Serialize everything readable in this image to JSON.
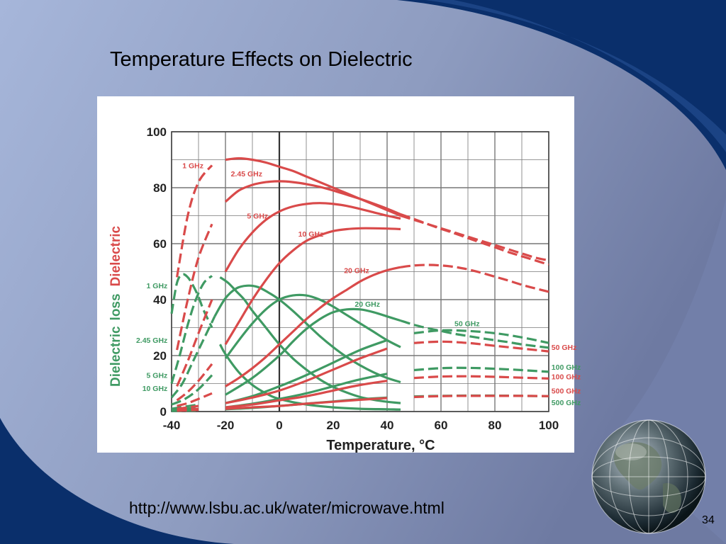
{
  "slide": {
    "title": "Temperature Effects on Dielectric",
    "source_url": "http://www.lsbu.ac.uk/water/microwave.html",
    "page_number": "34"
  },
  "colors": {
    "background_light": "#a9b8d8",
    "background_dark": "#0a2a66",
    "dielectric_red": "#d94a4a",
    "loss_green": "#3f9a63",
    "grid": "#555555"
  },
  "chart_data": {
    "type": "line",
    "xlabel": "Temperature, °C",
    "ylabel_parts": [
      "Dielectric",
      "loss",
      "Dielectric"
    ],
    "xlim": [
      -40,
      100
    ],
    "ylim": [
      0,
      100
    ],
    "x_ticks": [
      "-40",
      "-20",
      "0",
      "20",
      "40",
      "60",
      "80",
      "100"
    ],
    "y_ticks": [
      "0",
      "20",
      "40",
      "60",
      "80",
      "100"
    ],
    "grid": true,
    "dielectric_series": [
      {
        "name": "1 GHz",
        "x": [
          -38,
          -34,
          -30,
          -25,
          -20,
          -15,
          -10,
          -5,
          0,
          5,
          10,
          15,
          20,
          25,
          30,
          35,
          40,
          45,
          50,
          55,
          60,
          65,
          70,
          75,
          80,
          85,
          90,
          95,
          100
        ],
        "y": [
          48,
          70,
          82,
          88,
          90,
          90.5,
          90,
          89,
          87.5,
          86,
          84,
          82,
          80,
          78,
          76,
          74,
          72,
          70,
          68.5,
          67,
          65.5,
          64,
          62.5,
          61,
          59.5,
          58,
          56.5,
          55,
          54
        ]
      },
      {
        "name": "2.45 GHz",
        "x": [
          -38,
          -34,
          -30,
          -25,
          -20,
          -15,
          -10,
          -5,
          0,
          5,
          10,
          15,
          20,
          25,
          30,
          35,
          40,
          45,
          50,
          55,
          60,
          65,
          70,
          75,
          80,
          85,
          90,
          95,
          100
        ],
        "y": [
          22,
          40,
          55,
          67,
          75,
          79,
          81,
          82,
          82.3,
          82,
          81.3,
          80.3,
          79,
          77.5,
          76,
          74.3,
          72.5,
          70.5,
          68.8,
          67,
          65.3,
          63.7,
          62,
          60.3,
          58.7,
          57,
          55.5,
          54,
          52.5
        ]
      },
      {
        "name": "5 GHz",
        "x": [
          -38,
          -34,
          -30,
          -25,
          -20,
          -15,
          -10,
          -5,
          0,
          5,
          10,
          15,
          20,
          25,
          30,
          35,
          40,
          45
        ],
        "y": [
          9,
          18,
          28,
          40,
          50,
          58,
          64,
          68.5,
          71.5,
          73.3,
          74.2,
          74.5,
          74.2,
          73.5,
          72.4,
          71.2,
          70,
          69
        ]
      },
      {
        "name": "10 GHz",
        "x": [
          -38,
          -34,
          -30,
          -25,
          -20,
          -15,
          -10,
          -5,
          0,
          5,
          10,
          15,
          20,
          25,
          30,
          35,
          40,
          45
        ],
        "y": [
          4,
          7,
          11,
          17,
          24,
          32,
          40,
          47,
          53,
          57.5,
          61,
          63,
          64.5,
          65.2,
          65.5,
          65.5,
          65.4,
          65.2
        ]
      },
      {
        "name": "20 GHz",
        "x": [
          -38,
          -34,
          -30,
          -25,
          -20,
          -15,
          -10,
          -5,
          0,
          5,
          10,
          15,
          20,
          25,
          30,
          35,
          40,
          45,
          50,
          55,
          60,
          65,
          70,
          75,
          80,
          85,
          90,
          95,
          100
        ],
        "y": [
          2,
          3,
          4.5,
          6.5,
          9,
          12,
          15.5,
          19.5,
          24,
          28.5,
          33,
          37,
          40.5,
          43.5,
          46.5,
          48.8,
          50.5,
          51.6,
          52.2,
          52.4,
          52.2,
          51.7,
          50.8,
          49.6,
          48.2,
          46.8,
          45.3,
          44,
          42.8
        ]
      },
      {
        "name": "50 GHz",
        "x": [
          -38,
          -30,
          -20,
          -10,
          0,
          10,
          20,
          30,
          40,
          50,
          60,
          70,
          80,
          90,
          100
        ],
        "y": [
          1,
          2,
          3,
          5,
          7.5,
          11,
          15,
          19,
          22.5,
          24.5,
          25,
          24.5,
          23.5,
          22.5,
          21.5
        ]
      },
      {
        "name": "100 GHz",
        "x": [
          -38,
          -30,
          -20,
          -10,
          0,
          10,
          20,
          30,
          40,
          50,
          60,
          70,
          80,
          90,
          100
        ],
        "y": [
          0.5,
          1,
          1.5,
          2.5,
          4,
          5.5,
          7.5,
          9.5,
          11,
          12,
          12.5,
          12.6,
          12.4,
          12.1,
          11.8
        ]
      },
      {
        "name": "500 GHz",
        "x": [
          -38,
          -30,
          -20,
          -10,
          0,
          10,
          20,
          30,
          40,
          50,
          60,
          70,
          80,
          90,
          100
        ],
        "y": [
          0.3,
          0.6,
          1,
          1.5,
          2,
          2.8,
          3.5,
          4.2,
          4.8,
          5.2,
          5.5,
          5.6,
          5.6,
          5.6,
          5.5
        ]
      }
    ],
    "loss_series": [
      {
        "name": "1 GHz",
        "x": [
          -40,
          -38,
          -36,
          -34,
          -32,
          -30,
          -28,
          -25,
          -22,
          -20,
          -15,
          -10,
          -5,
          0,
          10,
          20,
          30,
          40,
          45
        ],
        "y": [
          35,
          46,
          49,
          48,
          45,
          41,
          36,
          30,
          24,
          20.5,
          14,
          9.5,
          6.5,
          4.5,
          2.5,
          1.5,
          1,
          0.8,
          0.7
        ]
      },
      {
        "name": "2.45 GHz",
        "x": [
          -40,
          -37,
          -34,
          -31,
          -28,
          -25,
          -22,
          -19,
          -16,
          -13,
          -10,
          -5,
          0,
          5,
          10,
          15,
          20,
          25,
          30,
          35,
          40,
          45
        ],
        "y": [
          10,
          20,
          31,
          40,
          46,
          48.5,
          48,
          46,
          43,
          40,
          36,
          30,
          24,
          19,
          15,
          11.5,
          8.8,
          6.8,
          5.2,
          4.2,
          3.5,
          3
        ]
      },
      {
        "name": "5 GHz",
        "x": [
          -40,
          -36,
          -32,
          -28,
          -24,
          -20,
          -16,
          -12,
          -8,
          -4,
          0,
          5,
          10,
          15,
          20,
          25,
          30,
          35,
          40,
          45
        ],
        "y": [
          5,
          10,
          18,
          26,
          34,
          40.5,
          44,
          45,
          44.5,
          42.5,
          40,
          36,
          31.5,
          27,
          23,
          19.5,
          16.5,
          14,
          12,
          10.5
        ]
      },
      {
        "name": "10 GHz",
        "x": [
          -40,
          -35,
          -30,
          -25,
          -20,
          -15,
          -10,
          -5,
          0,
          5,
          10,
          15,
          20,
          25,
          30,
          35,
          40,
          45
        ],
        "y": [
          2.5,
          4.5,
          8,
          13,
          19,
          25.5,
          31.5,
          36.5,
          40,
          41.5,
          41.5,
          40,
          37.5,
          34.5,
          31.5,
          28.5,
          25.5,
          23
        ]
      },
      {
        "name": "20 GHz",
        "x": [
          -40,
          -30,
          -20,
          -10,
          0,
          5,
          10,
          15,
          20,
          25,
          30,
          35,
          40,
          45,
          50,
          55,
          60,
          65,
          70,
          75,
          80,
          85,
          90,
          95,
          100
        ],
        "y": [
          1,
          2.5,
          6,
          12,
          20,
          25,
          29.5,
          33,
          35.5,
          36.5,
          36.5,
          35.5,
          34,
          32.5,
          31,
          29.8,
          28.8,
          27.8,
          27,
          26.2,
          25.5,
          24.8,
          24,
          23.4,
          22.8
        ]
      },
      {
        "name": "50 GHz",
        "x": [
          -40,
          -30,
          -20,
          -10,
          0,
          10,
          20,
          30,
          40,
          50,
          60,
          70,
          80,
          90,
          100
        ],
        "y": [
          0.5,
          1.5,
          3,
          5.5,
          9,
          13,
          17.5,
          22,
          25.5,
          28,
          29,
          28.8,
          28,
          26.5,
          24.5
        ]
      },
      {
        "name": "100 GHz",
        "x": [
          -40,
          -30,
          -20,
          -10,
          0,
          10,
          20,
          30,
          40,
          50,
          60,
          70,
          80,
          90,
          100
        ],
        "y": [
          0.3,
          0.8,
          1.5,
          2.8,
          4.5,
          6.5,
          9,
          11.5,
          13.5,
          14.8,
          15.5,
          15.6,
          15.3,
          14.8,
          14.2
        ]
      },
      {
        "name": "500 GHz",
        "x": [
          -40,
          -30,
          -20,
          -10,
          0,
          10,
          20,
          30,
          40,
          50,
          60,
          70,
          80,
          90,
          100
        ],
        "y": [
          0.2,
          0.4,
          0.8,
          1.3,
          2,
          2.8,
          3.6,
          4.4,
          5,
          5.4,
          5.6,
          5.7,
          5.7,
          5.6,
          5.5
        ]
      }
    ],
    "red_labels": [
      {
        "text": "1 GHz",
        "x": -36,
        "y": 87
      },
      {
        "text": "2.45 GHz",
        "x": -18,
        "y": 84
      },
      {
        "text": "5 GHz",
        "x": -12,
        "y": 69
      },
      {
        "text": "10 GHz",
        "x": 7,
        "y": 62.5
      },
      {
        "text": "20 GHz",
        "x": 24,
        "y": 49.5
      },
      {
        "text": "50 GHz",
        "x": 101,
        "y": 22
      },
      {
        "text": "100 GHz",
        "x": 101,
        "y": 11.5
      },
      {
        "text": "500 GHz",
        "x": 101,
        "y": 6.5
      }
    ],
    "green_labels": [
      {
        "text": "1 GHz",
        "x": -41.5,
        "y": 44,
        "anchor": "end"
      },
      {
        "text": "20 GHz",
        "x": 28,
        "y": 37.5,
        "anchor": "start"
      },
      {
        "text": "50 GHz",
        "x": 65,
        "y": 30.5,
        "anchor": "start"
      },
      {
        "text": "2.45 GHz",
        "x": -41.5,
        "y": 24.5,
        "anchor": "end"
      },
      {
        "text": "5 GHz",
        "x": -41.5,
        "y": 12,
        "anchor": "end"
      },
      {
        "text": "10 GHz",
        "x": -41.5,
        "y": 7.3,
        "anchor": "end"
      },
      {
        "text": "100 GHz",
        "x": 101,
        "y": 15,
        "anchor": "start"
      },
      {
        "text": "500 GHz",
        "x": 101,
        "y": 2.3,
        "anchor": "start"
      }
    ]
  }
}
